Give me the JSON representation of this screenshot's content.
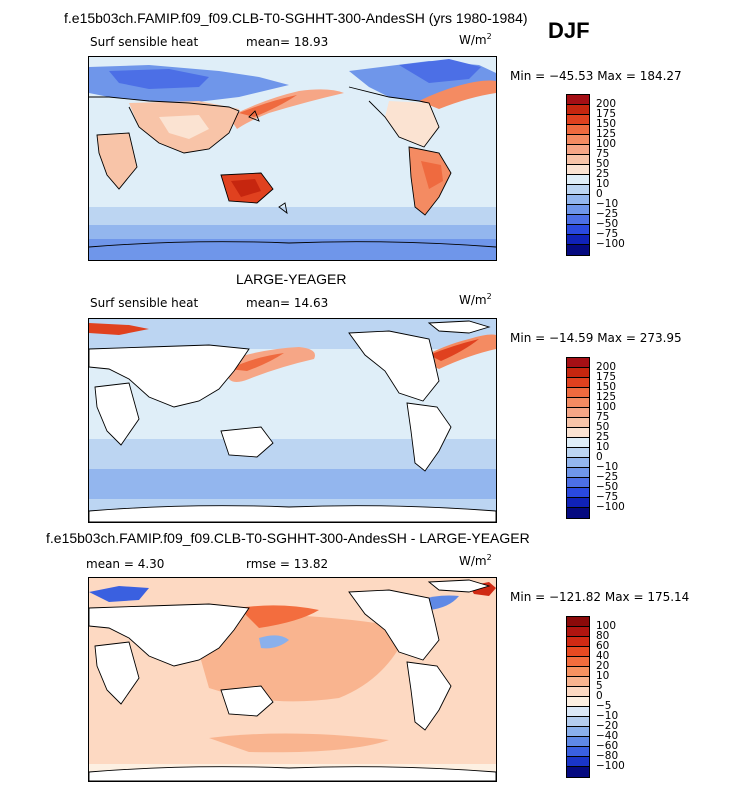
{
  "figure": {
    "top_title": "f.e15b03ch.FAMIP.f09_f09.CLB-T0-SGHHT-300-AndesSH (yrs 1980-1984)",
    "season": "DJF",
    "middle_title": "LARGE-YEAGER",
    "bottom_title": "f.e15b03ch.FAMIP.f09_f09.CLB-T0-SGHHT-300-AndesSH - LARGE-YEAGER"
  },
  "panels": [
    {
      "variable": "Surf sensible heat",
      "mean_text": "mean=  18.93",
      "units_base": "W/m",
      "units_exp": "2",
      "minmax": "Min = −45.53 Max = 184.27",
      "levels": [
        "200",
        "175",
        "150",
        "125",
        "100",
        "75",
        "50",
        "25",
        "10",
        "0",
        "−10",
        "−25",
        "−50",
        "−75",
        "−100"
      ],
      "colors": [
        "#a50f15",
        "#c6260f",
        "#e0411f",
        "#ef6a3f",
        "#f48b62",
        "#f6a686",
        "#f8c4a8",
        "#fbe3d2",
        "#dfeef8",
        "#bcd5f2",
        "#93b6ee",
        "#6f96ea",
        "#4c6fe6",
        "#2a49df",
        "#1022b8",
        "#050a80"
      ]
    },
    {
      "variable": "Surf sensible heat",
      "mean_text": "mean=  14.63",
      "units_base": "W/m",
      "units_exp": "2",
      "minmax": "Min = −14.59 Max = 273.95",
      "levels": [
        "200",
        "175",
        "150",
        "125",
        "100",
        "75",
        "50",
        "25",
        "10",
        "0",
        "−10",
        "−25",
        "−50",
        "−75",
        "−100"
      ],
      "colors": [
        "#a50f15",
        "#c6260f",
        "#e0411f",
        "#ef6a3f",
        "#f48b62",
        "#f6a686",
        "#f8c4a8",
        "#fbe3d2",
        "#dfeef8",
        "#bcd5f2",
        "#93b6ee",
        "#6f96ea",
        "#4c6fe6",
        "#2a49df",
        "#1022b8",
        "#050a80"
      ]
    },
    {
      "mean_text": "mean =    4.30",
      "rmse_text": "rmse =  13.82",
      "units_base": "W/m",
      "units_exp": "2",
      "minmax": "Min = −121.82 Max = 175.14",
      "levels": [
        "100",
        "80",
        "60",
        "40",
        "20",
        "10",
        "5",
        "0",
        "−5",
        "−10",
        "−20",
        "−40",
        "−60",
        "−80",
        "−100"
      ],
      "colors": [
        "#8b0a0a",
        "#b01510",
        "#d02a14",
        "#e84a22",
        "#f36d3e",
        "#f79261",
        "#f9b48f",
        "#fdd9c2",
        "#fdf0e2",
        "#dbe8f7",
        "#b4cdef",
        "#8ab0ec",
        "#5f89e6",
        "#3a60e0",
        "#1a35c8",
        "#050a80"
      ]
    }
  ]
}
